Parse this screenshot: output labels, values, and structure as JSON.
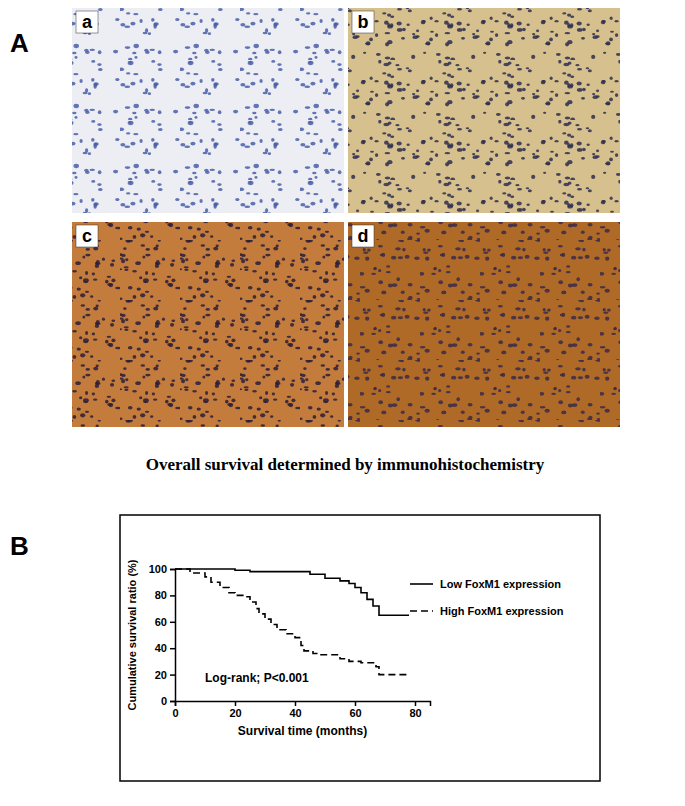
{
  "figure": {
    "panel_labels": [
      "A",
      "B"
    ],
    "image_labels": [
      "a",
      "b",
      "c",
      "d"
    ],
    "caption": "Overall survival determined by immunohistochemistry"
  },
  "chart_data": {
    "type": "line",
    "xlabel": "Survival time (months)",
    "ylabel": "Cumulative survival ratio (%)",
    "annotation": "Log-rank; P<0.001",
    "xlim": [
      0,
      85
    ],
    "xticks": [
      0,
      20,
      40,
      60,
      80
    ],
    "ylim": [
      0,
      100
    ],
    "yticks": [
      0,
      20,
      40,
      60,
      80,
      100
    ],
    "grid": false,
    "legend": "right",
    "series": [
      {
        "name": "Low FoxM1 expression",
        "color": "#000000",
        "line_style": "solid",
        "x": [
          0,
          20,
          25,
          45,
          50,
          55,
          58,
          60,
          62,
          64,
          66,
          68,
          78
        ],
        "values": [
          100,
          99,
          98,
          96,
          93,
          91,
          89,
          86,
          82,
          77,
          72,
          65,
          65
        ]
      },
      {
        "name": "High FoxM1 expression",
        "color": "#000000",
        "line_style": "dashed",
        "x": [
          0,
          5,
          10,
          12,
          15,
          18,
          20,
          24,
          25,
          27,
          28,
          30,
          32,
          34,
          37,
          40,
          42,
          43,
          46,
          48,
          55,
          58,
          62,
          67,
          68,
          78
        ],
        "values": [
          100,
          97,
          94,
          90,
          86,
          82,
          80,
          79,
          75,
          70,
          66,
          62,
          58,
          54,
          51,
          48,
          42,
          38,
          36,
          35,
          32,
          30,
          29,
          26,
          20,
          20
        ]
      }
    ]
  }
}
